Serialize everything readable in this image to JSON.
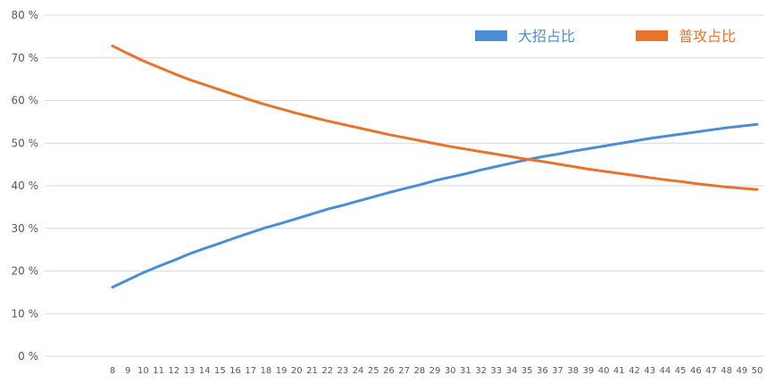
{
  "chart_data": {
    "type": "line",
    "title": "",
    "xlabel": "",
    "ylabel": "",
    "ylim": [
      0,
      80
    ],
    "yticks": [
      "0 %",
      "10 %",
      "20 %",
      "30 %",
      "40 %",
      "50 %",
      "60 %",
      "70 %",
      "80 %"
    ],
    "grid": true,
    "legend_position": "top-right",
    "categories": [
      "8",
      "9",
      "10",
      "11",
      "12",
      "13",
      "14",
      "15",
      "16",
      "17",
      "18",
      "19",
      "20",
      "21",
      "22",
      "23",
      "24",
      "25",
      "26",
      "27",
      "28",
      "29",
      "30",
      "31",
      "32",
      "33",
      "34",
      "35",
      "36",
      "37",
      "38",
      "39",
      "40",
      "41",
      "42",
      "43",
      "44",
      "45",
      "46",
      "47",
      "48",
      "49",
      "50"
    ],
    "series": [
      {
        "name": "大招占比",
        "color": "#4a8fd3",
        "values": [
          16.2,
          17.9,
          19.6,
          21.1,
          22.5,
          24.0,
          25.3,
          26.5,
          27.8,
          29.0,
          30.2,
          31.2,
          32.3,
          33.4,
          34.5,
          35.4,
          36.4,
          37.4,
          38.4,
          39.3,
          40.2,
          41.2,
          42.0,
          42.8,
          43.7,
          44.5,
          45.3,
          46.1,
          46.8,
          47.4,
          48.1,
          48.7,
          49.3,
          49.9,
          50.5,
          51.1,
          51.6,
          52.1,
          52.6,
          53.1,
          53.6,
          54.0,
          54.4
        ]
      },
      {
        "name": "普攻占比",
        "color": "#e8732a",
        "values": [
          72.8,
          71.0,
          69.3,
          67.8,
          66.3,
          64.9,
          63.7,
          62.5,
          61.3,
          60.1,
          59.0,
          58.0,
          57.0,
          56.1,
          55.2,
          54.4,
          53.6,
          52.8,
          52.0,
          51.3,
          50.6,
          49.9,
          49.2,
          48.6,
          48.0,
          47.4,
          46.8,
          46.2,
          45.7,
          45.1,
          44.5,
          43.9,
          43.4,
          42.9,
          42.4,
          41.9,
          41.4,
          41.0,
          40.5,
          40.1,
          39.7,
          39.4,
          39.1
        ]
      }
    ]
  }
}
